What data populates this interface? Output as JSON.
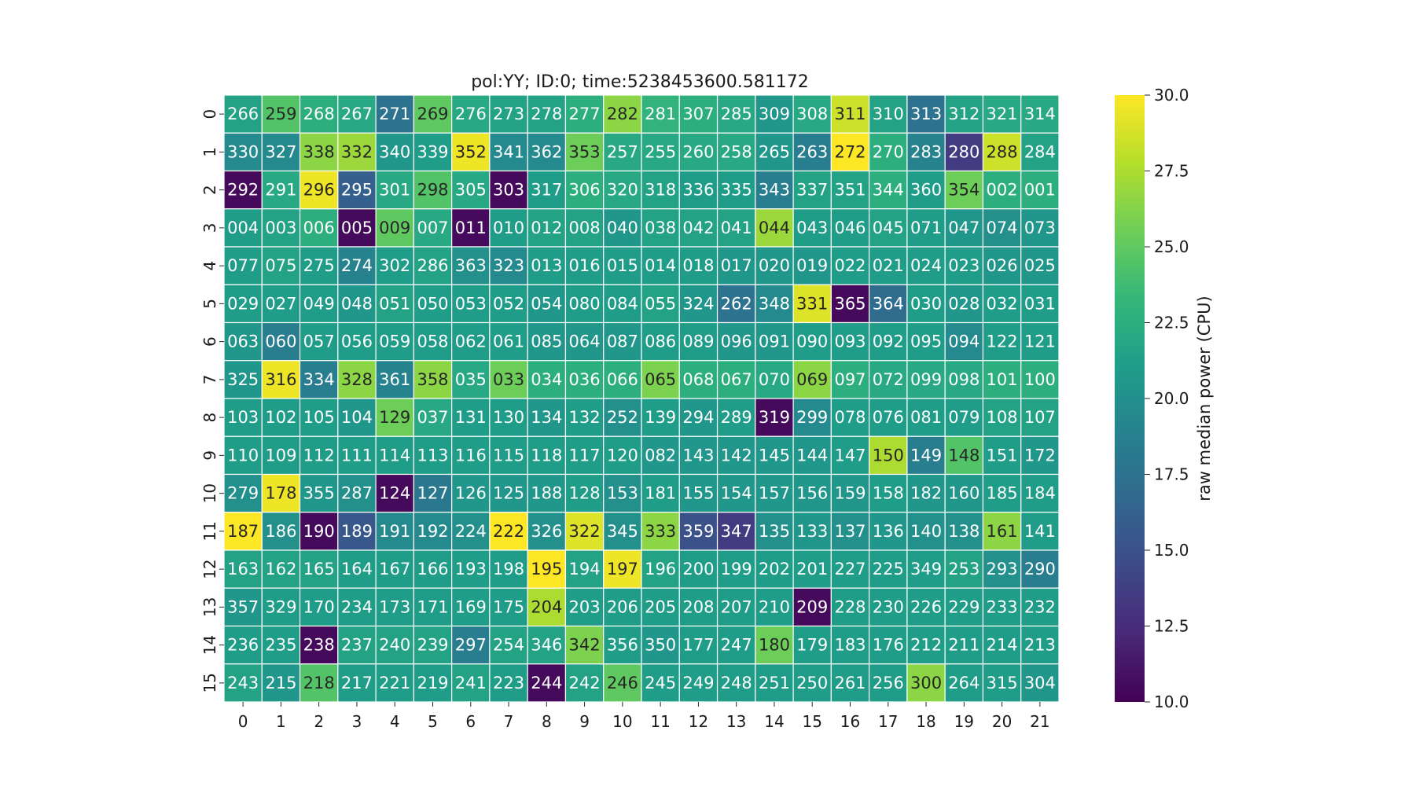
{
  "chart_data": {
    "type": "heatmap",
    "title": "pol:YY; ID:0; time:5238453600.581172",
    "xlabel": "",
    "ylabel": "",
    "x_categories": [
      "0",
      "1",
      "2",
      "3",
      "4",
      "5",
      "6",
      "7",
      "8",
      "9",
      "10",
      "11",
      "12",
      "13",
      "14",
      "15",
      "16",
      "17",
      "18",
      "19",
      "20",
      "21"
    ],
    "y_categories": [
      "0",
      "1",
      "2",
      "3",
      "4",
      "5",
      "6",
      "7",
      "8",
      "9",
      "10",
      "11",
      "12",
      "13",
      "14",
      "15"
    ],
    "colorbar": {
      "label": "raw median power (CPU)",
      "range": [
        10.0,
        30.0
      ],
      "ticks": [
        "10.0",
        "12.5",
        "15.0",
        "17.5",
        "20.0",
        "22.5",
        "25.0",
        "27.5",
        "30.0"
      ],
      "colormap": "viridis"
    },
    "annotations": [
      [
        "266",
        "259",
        "268",
        "267",
        "271",
        "269",
        "276",
        "273",
        "278",
        "277",
        "282",
        "281",
        "307",
        "285",
        "309",
        "308",
        "311",
        "310",
        "313",
        "312",
        "321",
        "314"
      ],
      [
        "330",
        "327",
        "338",
        "332",
        "340",
        "339",
        "352",
        "341",
        "362",
        "353",
        "257",
        "255",
        "260",
        "258",
        "265",
        "263",
        "272",
        "270",
        "283",
        "280",
        "288",
        "284"
      ],
      [
        "292",
        "291",
        "296",
        "295",
        "301",
        "298",
        "305",
        "303",
        "317",
        "306",
        "320",
        "318",
        "336",
        "335",
        "343",
        "337",
        "351",
        "344",
        "360",
        "354",
        "002",
        "001"
      ],
      [
        "004",
        "003",
        "006",
        "005",
        "009",
        "007",
        "011",
        "010",
        "012",
        "008",
        "040",
        "038",
        "042",
        "041",
        "044",
        "043",
        "046",
        "045",
        "071",
        "047",
        "074",
        "073"
      ],
      [
        "077",
        "075",
        "275",
        "274",
        "302",
        "286",
        "363",
        "323",
        "013",
        "016",
        "015",
        "014",
        "018",
        "017",
        "020",
        "019",
        "022",
        "021",
        "024",
        "023",
        "026",
        "025"
      ],
      [
        "029",
        "027",
        "049",
        "048",
        "051",
        "050",
        "053",
        "052",
        "054",
        "080",
        "084",
        "055",
        "324",
        "262",
        "348",
        "331",
        "365",
        "364",
        "030",
        "028",
        "032",
        "031"
      ],
      [
        "063",
        "060",
        "057",
        "056",
        "059",
        "058",
        "062",
        "061",
        "085",
        "064",
        "087",
        "086",
        "089",
        "096",
        "091",
        "090",
        "093",
        "092",
        "095",
        "094",
        "122",
        "121"
      ],
      [
        "325",
        "316",
        "334",
        "328",
        "361",
        "358",
        "035",
        "033",
        "034",
        "036",
        "066",
        "065",
        "068",
        "067",
        "070",
        "069",
        "097",
        "072",
        "099",
        "098",
        "101",
        "100"
      ],
      [
        "103",
        "102",
        "105",
        "104",
        "129",
        "037",
        "131",
        "130",
        "134",
        "132",
        "252",
        "139",
        "294",
        "289",
        "319",
        "299",
        "078",
        "076",
        "081",
        "079",
        "108",
        "107"
      ],
      [
        "110",
        "109",
        "112",
        "111",
        "114",
        "113",
        "116",
        "115",
        "118",
        "117",
        "120",
        "082",
        "143",
        "142",
        "145",
        "144",
        "147",
        "150",
        "149",
        "148",
        "151",
        "172"
      ],
      [
        "279",
        "178",
        "355",
        "287",
        "124",
        "127",
        "126",
        "125",
        "188",
        "128",
        "153",
        "181",
        "155",
        "154",
        "157",
        "156",
        "159",
        "158",
        "182",
        "160",
        "185",
        "184"
      ],
      [
        "187",
        "186",
        "190",
        "189",
        "191",
        "192",
        "224",
        "222",
        "326",
        "322",
        "345",
        "333",
        "359",
        "347",
        "135",
        "133",
        "137",
        "136",
        "140",
        "138",
        "161",
        "141"
      ],
      [
        "163",
        "162",
        "165",
        "164",
        "167",
        "166",
        "193",
        "198",
        "195",
        "194",
        "197",
        "196",
        "200",
        "199",
        "202",
        "201",
        "227",
        "225",
        "349",
        "253",
        "293",
        "290"
      ],
      [
        "357",
        "329",
        "170",
        "234",
        "173",
        "171",
        "169",
        "175",
        "204",
        "203",
        "206",
        "205",
        "208",
        "207",
        "210",
        "209",
        "228",
        "230",
        "226",
        "229",
        "233",
        "232"
      ],
      [
        "236",
        "235",
        "238",
        "237",
        "240",
        "239",
        "297",
        "254",
        "346",
        "342",
        "356",
        "350",
        "177",
        "247",
        "180",
        "179",
        "183",
        "176",
        "212",
        "211",
        "214",
        "213"
      ],
      [
        "243",
        "215",
        "218",
        "217",
        "221",
        "219",
        "241",
        "223",
        "244",
        "242",
        "246",
        "245",
        "249",
        "248",
        "251",
        "250",
        "261",
        "256",
        "300",
        "264",
        "315",
        "304"
      ]
    ],
    "values": [
      [
        21.5,
        24.5,
        22.5,
        22.0,
        17.5,
        25.0,
        22.0,
        21.5,
        21.5,
        22.5,
        26.5,
        23.0,
        22.5,
        22.0,
        20.5,
        22.0,
        28.5,
        21.5,
        17.5,
        21.5,
        22.0,
        22.0
      ],
      [
        19.5,
        19.5,
        26.5,
        27.0,
        20.5,
        21.0,
        29.5,
        19.5,
        19.5,
        25.5,
        22.0,
        22.0,
        22.0,
        22.0,
        20.5,
        18.5,
        30.0,
        22.5,
        19.0,
        13.5,
        28.5,
        21.5
      ],
      [
        10.5,
        22.0,
        29.5,
        16.0,
        22.0,
        24.5,
        22.0,
        10.5,
        21.0,
        22.5,
        22.0,
        21.5,
        21.0,
        21.0,
        18.5,
        21.5,
        21.5,
        22.5,
        21.0,
        25.5,
        22.5,
        22.5
      ],
      [
        21.0,
        21.5,
        22.5,
        10.5,
        25.0,
        22.0,
        10.5,
        21.0,
        21.5,
        21.5,
        20.5,
        21.5,
        21.5,
        21.5,
        27.0,
        21.0,
        21.0,
        21.5,
        21.0,
        20.5,
        20.0,
        20.5
      ],
      [
        21.0,
        21.5,
        21.0,
        19.0,
        21.0,
        21.5,
        20.0,
        19.5,
        21.0,
        21.0,
        21.0,
        21.0,
        21.0,
        20.5,
        20.5,
        20.5,
        21.0,
        21.0,
        21.0,
        21.0,
        20.5,
        20.5
      ],
      [
        21.0,
        21.0,
        21.0,
        20.5,
        21.5,
        21.0,
        21.0,
        21.0,
        20.5,
        21.0,
        21.0,
        21.5,
        20.5,
        17.5,
        19.5,
        29.0,
        10.5,
        17.0,
        21.0,
        20.5,
        21.0,
        21.0
      ],
      [
        20.5,
        18.5,
        21.0,
        21.0,
        21.0,
        21.0,
        21.0,
        21.0,
        20.5,
        20.5,
        20.5,
        21.0,
        21.0,
        20.5,
        20.5,
        21.0,
        21.0,
        21.0,
        21.0,
        19.5,
        21.0,
        21.0
      ],
      [
        20.5,
        29.5,
        18.5,
        26.5,
        19.0,
        26.5,
        22.0,
        25.5,
        22.5,
        22.5,
        22.5,
        26.0,
        22.5,
        22.5,
        22.0,
        26.5,
        22.5,
        22.0,
        22.0,
        22.0,
        22.5,
        22.5
      ],
      [
        21.0,
        21.0,
        21.0,
        20.5,
        25.5,
        22.0,
        21.0,
        21.0,
        20.5,
        21.0,
        20.0,
        21.0,
        20.5,
        21.0,
        10.5,
        19.5,
        21.0,
        21.0,
        21.0,
        21.0,
        21.5,
        21.5
      ],
      [
        21.0,
        21.0,
        21.0,
        21.0,
        21.0,
        21.0,
        21.0,
        21.0,
        21.0,
        21.0,
        21.0,
        20.5,
        20.5,
        20.5,
        20.5,
        20.5,
        21.0,
        27.5,
        18.5,
        24.5,
        21.0,
        20.5
      ],
      [
        20.0,
        29.5,
        20.5,
        20.0,
        10.5,
        18.0,
        20.5,
        20.5,
        20.5,
        21.0,
        20.0,
        21.0,
        20.5,
        20.5,
        20.5,
        20.5,
        20.5,
        21.0,
        20.5,
        20.5,
        21.0,
        21.0
      ],
      [
        30.0,
        20.0,
        10.5,
        15.5,
        19.5,
        19.5,
        20.0,
        30.0,
        20.0,
        29.0,
        20.0,
        26.5,
        15.0,
        13.5,
        20.0,
        20.5,
        20.0,
        20.5,
        20.0,
        20.0,
        26.5,
        21.0
      ],
      [
        21.5,
        21.5,
        21.5,
        21.0,
        21.0,
        21.0,
        21.0,
        21.0,
        30.0,
        21.5,
        29.5,
        21.5,
        21.0,
        21.0,
        21.0,
        21.0,
        21.0,
        21.0,
        21.0,
        21.5,
        20.0,
        18.5
      ],
      [
        20.5,
        21.0,
        21.0,
        21.0,
        21.0,
        21.0,
        21.0,
        21.0,
        27.5,
        21.0,
        21.0,
        21.0,
        21.0,
        21.0,
        21.0,
        10.5,
        21.0,
        21.0,
        21.0,
        21.0,
        21.0,
        21.0
      ],
      [
        21.0,
        21.0,
        10.5,
        21.5,
        21.5,
        21.5,
        18.5,
        21.5,
        21.5,
        26.0,
        21.0,
        20.5,
        21.0,
        21.0,
        25.5,
        21.0,
        21.0,
        21.0,
        21.0,
        21.0,
        21.0,
        21.0
      ],
      [
        21.5,
        20.5,
        24.5,
        21.0,
        21.0,
        21.0,
        21.5,
        21.0,
        10.5,
        21.5,
        25.0,
        21.0,
        21.0,
        21.0,
        21.0,
        21.0,
        21.0,
        21.0,
        26.5,
        21.0,
        21.0,
        20.5
      ]
    ]
  }
}
